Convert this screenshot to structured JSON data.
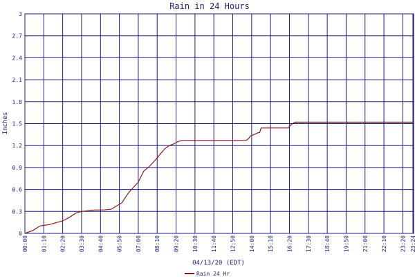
{
  "chart_data": {
    "type": "line",
    "title": "Rain in 24 Hours",
    "ylabel": "Inches",
    "xlabel": "04/13/20 (EDT)",
    "ylim": [
      0,
      3
    ],
    "yticks": [
      0,
      0.3,
      0.6,
      0.9,
      1.2,
      1.5,
      1.8,
      2.1,
      2.4,
      2.7,
      3
    ],
    "yticklabels": [
      "0",
      "0.3",
      "0.6",
      "0.9",
      "1.2",
      "1.5",
      "1.8",
      "2.1",
      "2.4",
      "2.7",
      "3"
    ],
    "xlim_minutes": [
      0,
      1440
    ],
    "xticklabels": [
      "00:00",
      "01:10",
      "02:20",
      "03:30",
      "04:40",
      "05:50",
      "07:00",
      "08:10",
      "09:20",
      "10:30",
      "11:40",
      "12:50",
      "14:00",
      "15:10",
      "16:20",
      "17:30",
      "18:40",
      "19:50",
      "21:00",
      "22:10",
      "23:20",
      "23:24"
    ],
    "grid": true,
    "legend_position": "bottom-left",
    "colors": {
      "series": "#8b1a1a",
      "grid": "#1a1a80",
      "text": "#1a1a80"
    },
    "series": [
      {
        "name": "Rain 24 Hr",
        "x_minutes": [
          0,
          30,
          55,
          70,
          90,
          120,
          140,
          165,
          190,
          210,
          235,
          260,
          290,
          320,
          360,
          370,
          385,
          400,
          420,
          440,
          460,
          475,
          490,
          505,
          520,
          535,
          550,
          565,
          580,
          595,
          610,
          625,
          700,
          735,
          820,
          830,
          835,
          855,
          860,
          870,
          875,
          935,
          975,
          985,
          1000,
          1440
        ],
        "y": [
          0,
          0.04,
          0.1,
          0.11,
          0.12,
          0.15,
          0.17,
          0.22,
          0.28,
          0.3,
          0.31,
          0.32,
          0.32,
          0.33,
          0.42,
          0.48,
          0.56,
          0.62,
          0.7,
          0.85,
          0.91,
          0.97,
          1.03,
          1.1,
          1.16,
          1.2,
          1.22,
          1.25,
          1.27,
          1.27,
          1.27,
          1.27,
          1.27,
          1.27,
          1.27,
          1.3,
          1.33,
          1.36,
          1.37,
          1.38,
          1.44,
          1.44,
          1.44,
          1.48,
          1.52,
          1.52
        ]
      }
    ]
  }
}
